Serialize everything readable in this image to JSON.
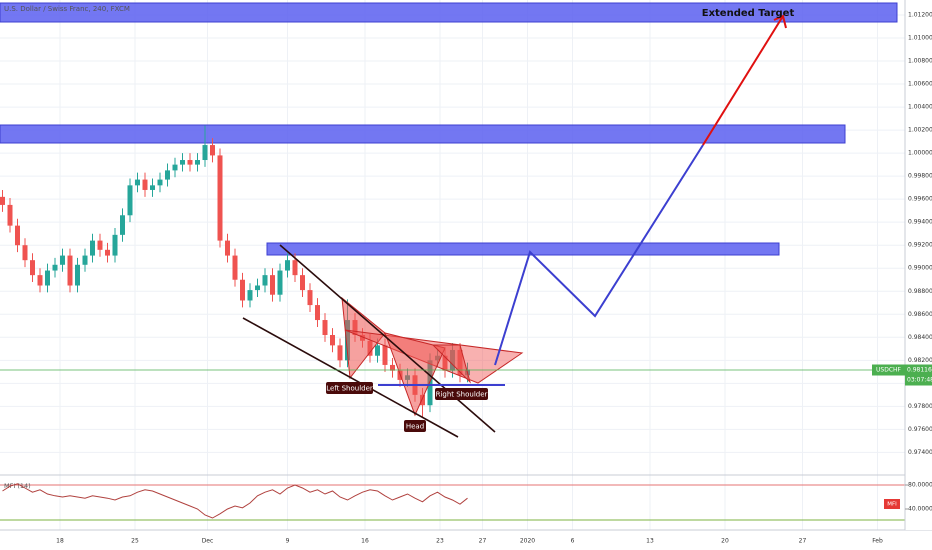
{
  "chart_data": {
    "type": "candlestick",
    "title": "U.S. Dollar / Swiss Franc, 240, FXCM",
    "x": [
      1,
      4,
      7,
      10,
      13,
      16,
      19,
      22,
      25,
      28,
      31,
      34,
      37,
      40,
      43,
      46,
      49,
      52,
      55,
      58,
      61,
      64,
      67,
      70,
      73,
      76,
      79,
      82,
      85,
      88,
      91,
      94,
      97,
      100,
      103,
      106,
      109,
      112,
      115,
      118,
      121,
      124,
      127,
      130,
      133,
      136,
      139,
      142,
      145,
      148,
      151,
      154,
      157,
      160,
      163,
      166,
      169,
      172,
      175,
      178,
      181,
      184,
      187
    ],
    "open": [
      0.9962,
      0.9955,
      0.9937,
      0.992,
      0.9907,
      0.9894,
      0.9885,
      0.9898,
      0.9903,
      0.9911,
      0.9885,
      0.9903,
      0.9911,
      0.9924,
      0.9916,
      0.9911,
      0.9929,
      0.9946,
      0.9972,
      0.9977,
      0.9968,
      0.9972,
      0.9977,
      0.9985,
      0.999,
      0.9994,
      0.999,
      0.9994,
      1.0007,
      0.9998,
      0.9924,
      0.9911,
      0.989,
      0.9872,
      0.9881,
      0.9885,
      0.9894,
      0.9877,
      0.9898,
      0.9907,
      0.9894,
      0.9881,
      0.9868,
      0.9855,
      0.9842,
      0.9833,
      0.982,
      0.9855,
      0.9842,
      0.9837,
      0.9824,
      0.9833,
      0.9816,
      0.9811,
      0.9803,
      0.9807,
      0.979,
      0.9781,
      0.982,
      0.9824,
      0.9811,
      0.9829,
      0.9807
    ],
    "high": [
      0.9968,
      0.9961,
      0.9943,
      0.9926,
      0.9913,
      0.99,
      0.9904,
      0.9909,
      0.9917,
      0.9917,
      0.9909,
      0.9917,
      0.993,
      0.993,
      0.9922,
      0.9935,
      0.9952,
      0.9978,
      0.9983,
      0.9983,
      0.9978,
      0.9983,
      0.9991,
      0.9996,
      1.0,
      1.0,
      1.0,
      1.0024,
      1.0013,
      1.0004,
      0.993,
      0.9917,
      0.9896,
      0.9887,
      0.9891,
      0.99,
      0.99,
      0.9904,
      0.9913,
      0.9913,
      0.99,
      0.9887,
      0.9874,
      0.9861,
      0.9848,
      0.9839,
      0.9873,
      0.9861,
      0.9848,
      0.9843,
      0.9839,
      0.9839,
      0.9822,
      0.9817,
      0.9813,
      0.9813,
      0.9796,
      0.9826,
      0.983,
      0.983,
      0.9835,
      0.9835,
      0.9818
    ],
    "low": [
      0.9949,
      0.9931,
      0.9914,
      0.9901,
      0.9888,
      0.9879,
      0.9879,
      0.9892,
      0.9897,
      0.9879,
      0.9879,
      0.9897,
      0.9905,
      0.991,
      0.9905,
      0.9905,
      0.9923,
      0.994,
      0.9966,
      0.9962,
      0.9962,
      0.9966,
      0.9971,
      0.9979,
      0.9984,
      0.9984,
      0.9984,
      0.9988,
      0.9992,
      0.9918,
      0.9905,
      0.9884,
      0.9866,
      0.9866,
      0.9875,
      0.9879,
      0.9871,
      0.9871,
      0.9892,
      0.9888,
      0.9875,
      0.9862,
      0.9849,
      0.9836,
      0.9827,
      0.9814,
      0.9814,
      0.9836,
      0.9831,
      0.9818,
      0.9818,
      0.981,
      0.9805,
      0.9797,
      0.9797,
      0.9784,
      0.977,
      0.9775,
      0.9814,
      0.9805,
      0.9805,
      0.9801,
      0.9801
    ],
    "close": [
      0.9955,
      0.9937,
      0.992,
      0.9907,
      0.9894,
      0.9885,
      0.9898,
      0.9903,
      0.9911,
      0.9885,
      0.9903,
      0.9911,
      0.9924,
      0.9916,
      0.9911,
      0.9929,
      0.9946,
      0.9972,
      0.9977,
      0.9968,
      0.9972,
      0.9977,
      0.9985,
      0.999,
      0.9994,
      0.999,
      0.9994,
      1.0007,
      0.9998,
      0.9924,
      0.9911,
      0.989,
      0.9872,
      0.9881,
      0.9885,
      0.9894,
      0.9877,
      0.9898,
      0.9907,
      0.9894,
      0.9881,
      0.9868,
      0.9855,
      0.9842,
      0.9833,
      0.982,
      0.9855,
      0.9842,
      0.9837,
      0.9824,
      0.9833,
      0.9816,
      0.9811,
      0.9803,
      0.9807,
      0.979,
      0.9781,
      0.982,
      0.9824,
      0.9811,
      0.9829,
      0.9807,
      0.9812
    ],
    "up_color": "#26a69a",
    "down_color": "#ef5350",
    "xlim": [
      0,
      362
    ],
    "ylim": [
      0.9723,
      1.0133
    ],
    "grid": true,
    "xticks": [
      {
        "value": 24,
        "label": "18"
      },
      {
        "value": 54,
        "label": "25"
      },
      {
        "value": 83,
        "label": "Dec"
      },
      {
        "value": 115,
        "label": "9"
      },
      {
        "value": 146,
        "label": "16"
      },
      {
        "value": 176,
        "label": "23"
      },
      {
        "value": 193,
        "label": "27"
      },
      {
        "value": 211,
        "label": "2020"
      },
      {
        "value": 229,
        "label": "6"
      },
      {
        "value": 260,
        "label": "13"
      },
      {
        "value": 290,
        "label": "20"
      },
      {
        "value": 321,
        "label": "27"
      },
      {
        "value": 351,
        "label": "Feb"
      }
    ],
    "yticks": [
      {
        "value": 1.012,
        "label": "1.01200"
      },
      {
        "value": 1.01,
        "label": "1.01000"
      },
      {
        "value": 1.008,
        "label": "1.00800"
      },
      {
        "value": 1.006,
        "label": "1.00600"
      },
      {
        "value": 1.004,
        "label": "1.00400"
      },
      {
        "value": 1.002,
        "label": "1.00200"
      },
      {
        "value": 1.0,
        "label": "1.00000"
      },
      {
        "value": 0.998,
        "label": "0.99800"
      },
      {
        "value": 0.996,
        "label": "0.99600"
      },
      {
        "value": 0.994,
        "label": "0.99400"
      },
      {
        "value": 0.992,
        "label": "0.99200"
      },
      {
        "value": 0.99,
        "label": "0.99000"
      },
      {
        "value": 0.988,
        "label": "0.98800"
      },
      {
        "value": 0.986,
        "label": "0.98600"
      },
      {
        "value": 0.984,
        "label": "0.98400"
      },
      {
        "value": 0.982,
        "label": "0.98200"
      },
      {
        "value": 0.98,
        "label": "0.98000"
      },
      {
        "value": 0.978,
        "label": "0.97800"
      },
      {
        "value": 0.976,
        "label": "0.97600"
      },
      {
        "value": 0.974,
        "label": "0.97400"
      }
    ],
    "last_price": 0.98116,
    "symbol": "USDCHF",
    "countdown": "03:07:48",
    "price_line_color": "#4caf50",
    "annotations": {
      "target": "Extended Target",
      "left_shoulder": "Left Shoulder",
      "head": "Head",
      "right_shoulder": "Right Shoulder"
    },
    "indicator": {
      "type": "line",
      "title": "MFI (14)",
      "badge": "MFI",
      "color": "#b0413e",
      "ylim": [
        5,
        95
      ],
      "yticks": [
        {
          "value": 80,
          "label": "80.00000"
        },
        {
          "value": 40,
          "label": "40.00000"
        }
      ],
      "values": [
        70,
        78,
        82,
        75,
        68,
        72,
        65,
        62,
        60,
        62,
        60,
        58,
        62,
        60,
        58,
        55,
        60,
        62,
        68,
        72,
        70,
        65,
        60,
        55,
        50,
        45,
        40,
        30,
        25,
        32,
        40,
        45,
        42,
        50,
        62,
        68,
        72,
        65,
        75,
        80,
        75,
        68,
        72,
        65,
        70,
        60,
        55,
        62,
        68,
        72,
        70,
        62,
        55,
        60,
        65,
        58,
        52,
        62,
        68,
        60,
        55,
        48,
        58
      ]
    }
  }
}
